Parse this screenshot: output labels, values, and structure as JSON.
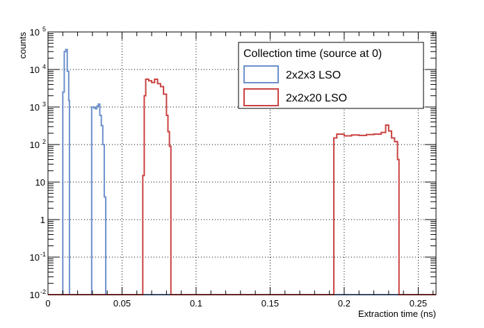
{
  "chart_data": {
    "type": "histogram",
    "xlabel": "Extraction time (ns)",
    "ylabel": "counts",
    "xlim": [
      0,
      0.262
    ],
    "ylim": [
      0.01,
      100000
    ],
    "y_scale": "log",
    "grid": true,
    "x_ticks": [
      {
        "value": 0,
        "label": "0"
      },
      {
        "value": 0.05,
        "label": "0.05"
      },
      {
        "value": 0.1,
        "label": "0.1"
      },
      {
        "value": 0.15,
        "label": "0.15"
      },
      {
        "value": 0.2,
        "label": "0.2"
      },
      {
        "value": 0.25,
        "label": "0.25"
      }
    ],
    "y_ticks": [
      {
        "value": 0.01,
        "base": "10",
        "exp": "-2"
      },
      {
        "value": 0.1,
        "base": "10",
        "exp": "-1"
      },
      {
        "value": 1,
        "base": "1",
        "exp": ""
      },
      {
        "value": 10,
        "base": "10",
        "exp": ""
      },
      {
        "value": 100,
        "base": "10",
        "exp": "2"
      },
      {
        "value": 1000,
        "base": "10",
        "exp": "3"
      },
      {
        "value": 10000,
        "base": "10",
        "exp": "4"
      },
      {
        "value": 100000,
        "base": "10",
        "exp": "5"
      }
    ],
    "legend": {
      "title": "Collection time (source at 0)",
      "placement": "top-right"
    },
    "series": [
      {
        "name": "2x2x3 LSO",
        "color": "#6b8fcc",
        "bins": [
          [
            0.01,
            0.011,
            2500
          ],
          [
            0.011,
            0.012,
            30000
          ],
          [
            0.012,
            0.013,
            34000
          ],
          [
            0.013,
            0.014,
            9000
          ],
          [
            0.014,
            0.0145,
            1500
          ],
          [
            0.0295,
            0.031,
            1000
          ],
          [
            0.031,
            0.032,
            950
          ],
          [
            0.032,
            0.033,
            900
          ],
          [
            0.033,
            0.034,
            1050
          ],
          [
            0.034,
            0.035,
            1200
          ],
          [
            0.035,
            0.036,
            600
          ],
          [
            0.036,
            0.037,
            320
          ],
          [
            0.037,
            0.038,
            100
          ],
          [
            0.038,
            0.039,
            4
          ]
        ]
      },
      {
        "name": "2x2x20 LSO",
        "color": "#c9413f",
        "bins": [
          [
            0.064,
            0.065,
            15
          ],
          [
            0.065,
            0.066,
            2000
          ],
          [
            0.066,
            0.068,
            5500
          ],
          [
            0.068,
            0.07,
            5000
          ],
          [
            0.07,
            0.072,
            4500
          ],
          [
            0.072,
            0.074,
            5500
          ],
          [
            0.074,
            0.076,
            4200
          ],
          [
            0.076,
            0.078,
            3500
          ],
          [
            0.078,
            0.08,
            2200
          ],
          [
            0.08,
            0.081,
            600
          ],
          [
            0.081,
            0.082,
            220
          ],
          [
            0.082,
            0.083,
            90
          ],
          [
            0.193,
            0.195,
            150
          ],
          [
            0.195,
            0.2,
            190
          ],
          [
            0.2,
            0.205,
            170
          ],
          [
            0.205,
            0.21,
            180
          ],
          [
            0.21,
            0.215,
            175
          ],
          [
            0.215,
            0.22,
            185
          ],
          [
            0.22,
            0.225,
            190
          ],
          [
            0.225,
            0.228,
            210
          ],
          [
            0.228,
            0.23,
            330
          ],
          [
            0.23,
            0.232,
            230
          ],
          [
            0.232,
            0.234,
            150
          ],
          [
            0.234,
            0.236,
            120
          ],
          [
            0.236,
            0.237,
            40
          ]
        ]
      }
    ]
  }
}
